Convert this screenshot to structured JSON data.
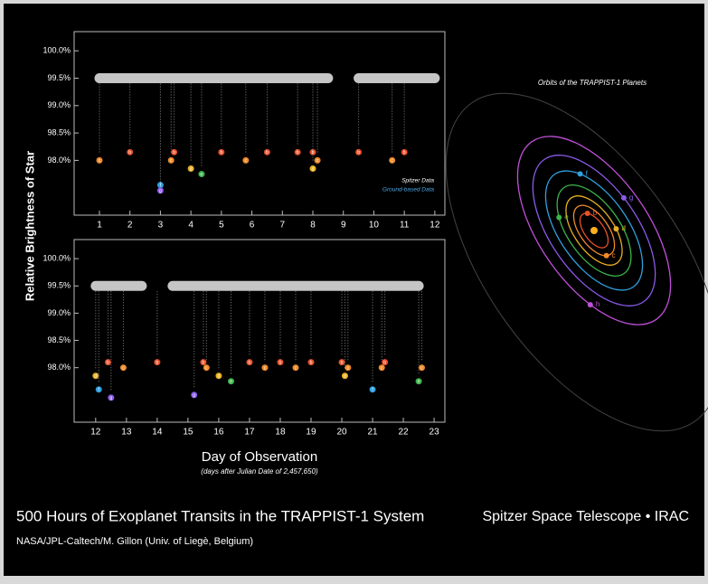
{
  "title": "500 Hours of Exoplanet Transits in the TRAPPIST-1 System",
  "credit": "NASA/JPL-Caltech/M. Gillon (Univ. of Liegè, Belgium)",
  "mission": "Spitzer Space Telescope • IRAC",
  "y_label": "Relative Brightness of Star",
  "x_label": "Day of Observation",
  "x_note": "(days after Julian Date of 2,457,650)",
  "orbits": {
    "title": "Orbits of the TRAPPIST-1 Planets",
    "planets": [
      {
        "label": "b",
        "color": "#e8502a"
      },
      {
        "label": "c",
        "color": "#f08a2a"
      },
      {
        "label": "d",
        "color": "#e8b020"
      },
      {
        "label": "e",
        "color": "#3cb44a"
      },
      {
        "label": "f",
        "color": "#30a0e0"
      },
      {
        "label": "g",
        "color": "#8a5ae8"
      },
      {
        "label": "h",
        "color": "#c050d8"
      }
    ]
  },
  "chart_data": [
    {
      "type": "scatter",
      "xlim": [
        0.17,
        12.33
      ],
      "ylim": [
        97.0,
        100.35
      ],
      "xticks": [
        1,
        2,
        3,
        4,
        5,
        6,
        7,
        8,
        9,
        10,
        11,
        12
      ],
      "yticks": [
        {
          "value": 98,
          "label": "98.0%"
        },
        {
          "value": 98.5,
          "label": "98.5%"
        },
        {
          "value": 99,
          "label": "99.0%"
        },
        {
          "value": 99.5,
          "label": "99.5%"
        },
        {
          "value": 100,
          "label": "100.0%"
        }
      ],
      "legend": [
        {
          "text": "Spitzer Data",
          "color": "#ffffff"
        },
        {
          "text": "Ground-based Data",
          "color": "#4aa8e8"
        }
      ],
      "series": [
        {
          "color": "#e8e8e8",
          "x": [
            1,
            1.5,
            2,
            2.5,
            3,
            3.5,
            4,
            4.5,
            5,
            5.5,
            6,
            6.5,
            7,
            7.5,
            8,
            8.5,
            9,
            9.5,
            10,
            10.5,
            11,
            11.5,
            12
          ],
          "values": [
            99.5,
            99.5,
            99.5,
            99.5,
            99.5,
            99.5,
            99.5,
            99.5,
            99.5,
            99.5,
            99.5,
            99.5,
            99.5,
            99.5,
            99.5,
            99.5,
            null,
            99.5,
            99.5,
            99.5,
            99.5,
            99.5,
            99.5
          ]
        }
      ],
      "transits": {
        "x": [
          1.0,
          2.0,
          3.0,
          3.0,
          3.35,
          3.45,
          4.0,
          4.35,
          5.0,
          5.8,
          6.5,
          7.5,
          8.0,
          8.15,
          8.0,
          9.5,
          10.6,
          11.0
        ],
        "values": [
          98.0,
          98.15,
          97.55,
          97.45,
          98.0,
          98.15,
          97.85,
          97.75,
          98.15,
          98.0,
          98.15,
          98.15,
          98.15,
          98.0,
          97.85,
          98.15,
          98.0,
          98.15
        ],
        "planets": [
          "c",
          "b",
          "f",
          "g",
          "c",
          "b",
          "d",
          "e",
          "b",
          "c",
          "b",
          "b",
          "b",
          "c",
          "d",
          "b",
          "c",
          "b"
        ]
      }
    },
    {
      "type": "scatter",
      "xlim": [
        11.3,
        23.35
      ],
      "ylim": [
        97.0,
        100.35
      ],
      "xticks": [
        12,
        13,
        14,
        15,
        16,
        17,
        18,
        19,
        20,
        21,
        22,
        23
      ],
      "yticks": [
        {
          "value": 98,
          "label": "98.0%"
        },
        {
          "value": 98.5,
          "label": "98.5%"
        },
        {
          "value": 99,
          "label": "99.0%"
        },
        {
          "value": 99.5,
          "label": "99.5%"
        },
        {
          "value": 100,
          "label": "100.0%"
        }
      ],
      "series": [
        {
          "color": "#e8e8e8",
          "x": [
            12,
            12.5,
            13,
            13.5,
            14,
            14.5,
            15,
            15.5,
            16,
            16.5,
            17,
            17.5,
            18,
            18.5,
            19,
            19.5,
            20,
            20.5,
            21,
            21.5,
            22,
            22.5
          ],
          "values": [
            99.5,
            99.5,
            99.5,
            99.5,
            null,
            99.5,
            99.5,
            99.5,
            99.5,
            99.5,
            99.5,
            99.5,
            99.5,
            99.5,
            99.5,
            99.5,
            99.5,
            99.5,
            99.5,
            99.5,
            99.5,
            99.5
          ]
        }
      ],
      "transits": {
        "x": [
          12.0,
          12.1,
          12.4,
          12.5,
          12.9,
          14.0,
          15.2,
          15.5,
          15.6,
          16.0,
          16.4,
          17.0,
          17.5,
          18.0,
          18.5,
          19.0,
          20.0,
          20.1,
          20.2,
          21.0,
          21.3,
          21.4,
          22.5,
          22.6
        ],
        "values": [
          97.85,
          97.6,
          98.1,
          97.45,
          98.0,
          98.1,
          97.5,
          98.1,
          98.0,
          97.85,
          97.75,
          98.1,
          98.0,
          98.1,
          98.0,
          98.1,
          98.1,
          97.85,
          98.0,
          97.6,
          98.0,
          98.1,
          97.75,
          98.0
        ],
        "planets": [
          "d",
          "f",
          "b",
          "g",
          "c",
          "b",
          "g",
          "b",
          "c",
          "d",
          "e",
          "b",
          "c",
          "b",
          "c",
          "b",
          "b",
          "d",
          "c",
          "f",
          "c",
          "b",
          "e",
          "c"
        ]
      }
    }
  ]
}
